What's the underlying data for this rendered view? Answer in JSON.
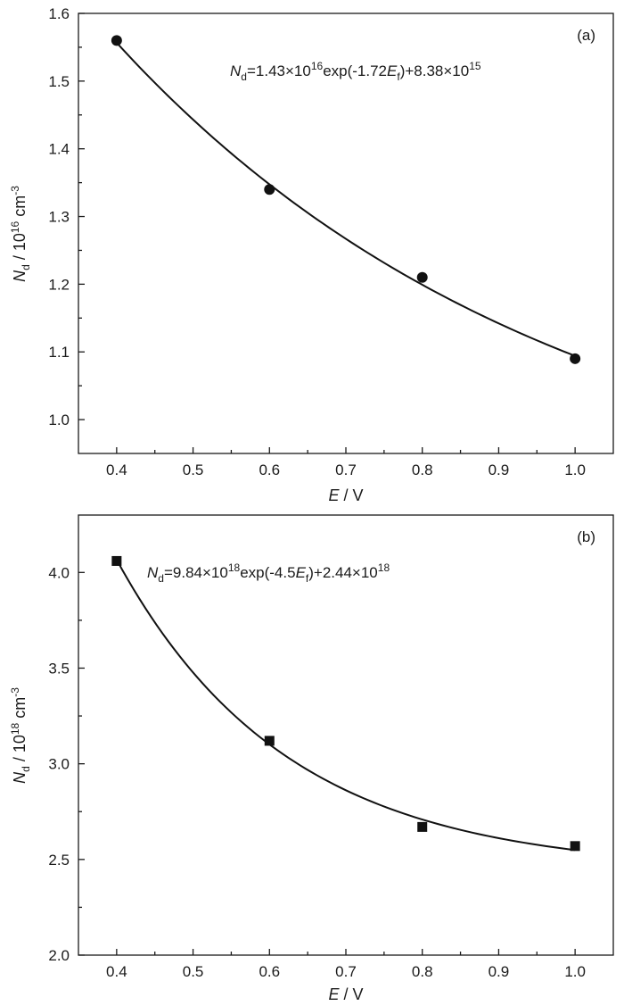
{
  "chart_data": [
    {
      "type": "scatter",
      "panel_label": "(a)",
      "marker": "circle",
      "x": [
        0.4,
        0.6,
        0.8,
        1.0
      ],
      "y": [
        1.56,
        1.34,
        1.21,
        1.09
      ],
      "xlim": [
        0.35,
        1.05
      ],
      "ylim": [
        0.95,
        1.6
      ],
      "xticks": [
        0.4,
        0.5,
        0.6,
        0.7,
        0.8,
        0.9,
        1.0
      ],
      "xtick_labels": [
        "0.4",
        "0.5",
        "0.6",
        "0.7",
        "0.8",
        "0.9",
        "1.0"
      ],
      "yticks": [
        1.0,
        1.1,
        1.2,
        1.3,
        1.4,
        1.5,
        1.6
      ],
      "ytick_labels": [
        "1.0",
        "1.1",
        "1.2",
        "1.3",
        "1.4",
        "1.5",
        "1.6"
      ],
      "xlabel": {
        "var": "E",
        "unit": " / V"
      },
      "ylabel": {
        "var": "N",
        "sub": "d",
        "mid": " / 10",
        "sup": "16",
        "unit": " cm",
        "unit_sup": "-3"
      },
      "fit": {
        "a": 1.43,
        "b": 1.72,
        "c": 0.838
      },
      "equation": {
        "lhs": "N",
        "lhs_sub": "d",
        "p1": "=1.43×10",
        "p1_sup": "16",
        "p2": "exp(-1.72",
        "var": "E",
        "var_sub": "f",
        "p3": ")+8.38×10",
        "p3_sup": "15"
      },
      "legend": "none"
    },
    {
      "type": "scatter",
      "panel_label": "(b)",
      "marker": "square",
      "x": [
        0.4,
        0.6,
        0.8,
        1.0
      ],
      "y": [
        4.06,
        3.12,
        2.67,
        2.57
      ],
      "xlim": [
        0.35,
        1.05
      ],
      "ylim": [
        2.0,
        4.3
      ],
      "xticks": [
        0.4,
        0.5,
        0.6,
        0.7,
        0.8,
        0.9,
        1.0
      ],
      "xtick_labels": [
        "0.4",
        "0.5",
        "0.6",
        "0.7",
        "0.8",
        "0.9",
        "1.0"
      ],
      "yticks": [
        2.0,
        2.5,
        3.0,
        3.5,
        4.0
      ],
      "ytick_labels": [
        "2.0",
        "2.5",
        "3.0",
        "3.5",
        "4.0"
      ],
      "xlabel": {
        "var": "E",
        "unit": " / V"
      },
      "ylabel": {
        "var": "N",
        "sub": "d",
        "mid": " / 10",
        "sup": "18",
        "unit": " cm",
        "unit_sup": "-3"
      },
      "fit": {
        "a": 9.84,
        "b": 4.5,
        "c": 2.44
      },
      "equation": {
        "lhs": "N",
        "lhs_sub": "d",
        "p1": "=9.84×10",
        "p1_sup": "18",
        "p2": "exp(-4.5",
        "var": "E",
        "var_sub": "f",
        "p3": ")+2.44×10",
        "p3_sup": "18"
      },
      "legend": "none"
    }
  ]
}
